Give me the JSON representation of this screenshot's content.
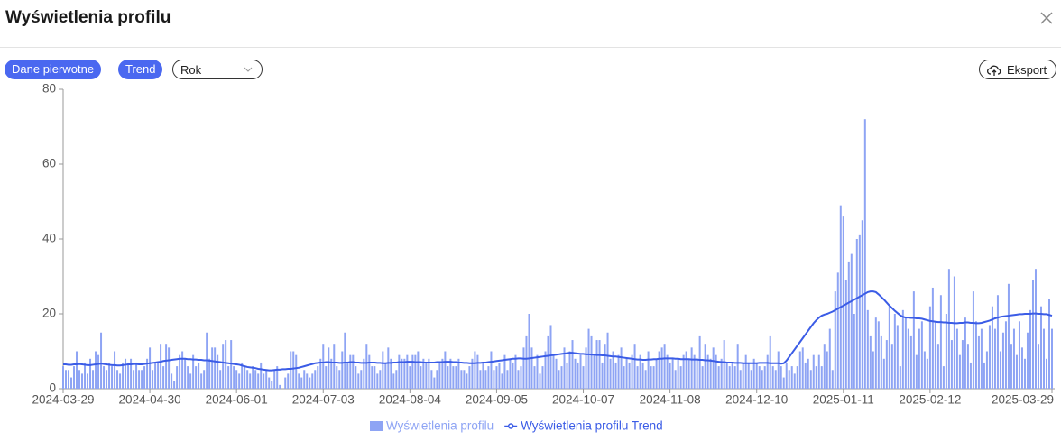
{
  "header": {
    "title": "Wyświetlenia profilu"
  },
  "controls": {
    "raw_data": "Dane pierwotne",
    "trend": "Trend",
    "period": "Rok",
    "export": "Eksport"
  },
  "chart_data": {
    "type": "bar",
    "ylim": [
      0,
      80
    ],
    "yticks": [
      0,
      20,
      40,
      60,
      80
    ],
    "categories": [
      "2024-03-29",
      null,
      null,
      null,
      null,
      null,
      null,
      null,
      null,
      null,
      null,
      null,
      null,
      null,
      null,
      null,
      null,
      null,
      null,
      null,
      null,
      null,
      null,
      null,
      null,
      null,
      null,
      null,
      null,
      null,
      null,
      null,
      "2024-04-30",
      null,
      null,
      null,
      null,
      null,
      null,
      null,
      null,
      null,
      null,
      null,
      null,
      null,
      null,
      null,
      null,
      null,
      null,
      null,
      null,
      null,
      null,
      null,
      null,
      null,
      null,
      null,
      null,
      null,
      null,
      null,
      "2024-06-01",
      null,
      null,
      null,
      null,
      null,
      null,
      null,
      null,
      null,
      null,
      null,
      null,
      null,
      null,
      null,
      null,
      null,
      null,
      null,
      null,
      null,
      null,
      null,
      null,
      null,
      null,
      null,
      null,
      null,
      null,
      null,
      "2024-07-03",
      null,
      null,
      null,
      null,
      null,
      null,
      null,
      null,
      null,
      null,
      null,
      null,
      null,
      null,
      null,
      null,
      null,
      null,
      null,
      null,
      null,
      null,
      null,
      null,
      null,
      null,
      null,
      null,
      null,
      null,
      null,
      "2024-08-04",
      null,
      null,
      null,
      null,
      null,
      null,
      null,
      null,
      null,
      null,
      null,
      null,
      null,
      null,
      null,
      null,
      null,
      null,
      null,
      null,
      null,
      null,
      null,
      null,
      null,
      null,
      null,
      null,
      null,
      null,
      null,
      "2024-09-05",
      null,
      null,
      null,
      null,
      null,
      null,
      null,
      null,
      null,
      null,
      null,
      null,
      null,
      null,
      null,
      null,
      null,
      null,
      null,
      null,
      null,
      null,
      null,
      null,
      null,
      null,
      null,
      null,
      null,
      null,
      null,
      "2024-10-07",
      null,
      null,
      null,
      null,
      null,
      null,
      null,
      null,
      null,
      null,
      null,
      null,
      null,
      null,
      null,
      null,
      null,
      null,
      null,
      null,
      null,
      null,
      null,
      null,
      null,
      null,
      null,
      null,
      null,
      null,
      null,
      "2024-11-08",
      null,
      null,
      null,
      null,
      null,
      null,
      null,
      null,
      null,
      null,
      null,
      null,
      null,
      null,
      null,
      null,
      null,
      null,
      null,
      null,
      null,
      null,
      null,
      null,
      null,
      null,
      null,
      null,
      null,
      null,
      null,
      "2024-12-10",
      null,
      null,
      null,
      null,
      null,
      null,
      null,
      null,
      null,
      null,
      null,
      null,
      null,
      null,
      null,
      null,
      null,
      null,
      null,
      null,
      null,
      null,
      null,
      null,
      null,
      null,
      null,
      null,
      null,
      null,
      null,
      "2025-01-11",
      null,
      null,
      null,
      null,
      null,
      null,
      null,
      null,
      null,
      null,
      null,
      null,
      null,
      null,
      null,
      null,
      null,
      null,
      null,
      null,
      null,
      null,
      null,
      null,
      null,
      null,
      null,
      null,
      null,
      null,
      null,
      "2025-02-12",
      null,
      null,
      null,
      null,
      null,
      null,
      null,
      null,
      null,
      null,
      null,
      null,
      null,
      null,
      null,
      null,
      null,
      null,
      null,
      null,
      null,
      null,
      null,
      null,
      null,
      null,
      null,
      null,
      null,
      null,
      null,
      null,
      null,
      null,
      null,
      null,
      null,
      null,
      null,
      null,
      null,
      null,
      null,
      null,
      "2025-03-29"
    ],
    "series": [
      {
        "name": "Wyświetlenia profilu",
        "type": "bar",
        "color": "#8ea4f4",
        "values": [
          6,
          5,
          5,
          3,
          6,
          10,
          5,
          4,
          7,
          4,
          8,
          5,
          10,
          9,
          15,
          6,
          5,
          7,
          6,
          10,
          5,
          4,
          7,
          8,
          7,
          8,
          5,
          7,
          5,
          5,
          6,
          8,
          11,
          5,
          7,
          7,
          12,
          6,
          12,
          11,
          4,
          2,
          6,
          9,
          10,
          8,
          6,
          4,
          9,
          6,
          7,
          4,
          5,
          15,
          8,
          11,
          11,
          9,
          5,
          12,
          13,
          6,
          13,
          6,
          5,
          4,
          7,
          6,
          5,
          4,
          6,
          5,
          4,
          7,
          4,
          5,
          3,
          2,
          5,
          6,
          1,
          0,
          3,
          4,
          10,
          10,
          9,
          4,
          3,
          5,
          4,
          3,
          4,
          5,
          6,
          8,
          12,
          6,
          11,
          8,
          12,
          6,
          5,
          10,
          15,
          7,
          9,
          9,
          6,
          4,
          5,
          8,
          12,
          9,
          6,
          6,
          4,
          5,
          10,
          7,
          11,
          8,
          4,
          5,
          9,
          8,
          8,
          9,
          6,
          9,
          9,
          10,
          6,
          8,
          7,
          8,
          5,
          3,
          5,
          7,
          8,
          10,
          6,
          8,
          6,
          6,
          8,
          5,
          5,
          4,
          6,
          8,
          10,
          9,
          5,
          7,
          5,
          6,
          10,
          5,
          6,
          7,
          4,
          9,
          5,
          8,
          7,
          9,
          5,
          6,
          11,
          14,
          20,
          11,
          6,
          9,
          4,
          6,
          10,
          14,
          17,
          9,
          8,
          5,
          6,
          11,
          7,
          10,
          13,
          8,
          7,
          9,
          6,
          11,
          16,
          14,
          9,
          13,
          13,
          7,
          12,
          15,
          8,
          10,
          7,
          9,
          11,
          6,
          8,
          7,
          9,
          12,
          6,
          9,
          7,
          5,
          10,
          6,
          6,
          8,
          10,
          11,
          12,
          9,
          7,
          8,
          5,
          8,
          6,
          9,
          10,
          8,
          11,
          9,
          8,
          14,
          6,
          12,
          9,
          8,
          11,
          9,
          6,
          8,
          13,
          7,
          6,
          7,
          6,
          12,
          5,
          7,
          9,
          7,
          5,
          8,
          7,
          6,
          5,
          6,
          9,
          14,
          6,
          5,
          10,
          6,
          3,
          7,
          5,
          6,
          4,
          6,
          10,
          11,
          7,
          8,
          5,
          9,
          6,
          9,
          6,
          12,
          10,
          16,
          5,
          26,
          31,
          49,
          46,
          29,
          34,
          36,
          20,
          40,
          41,
          45,
          72,
          21,
          14,
          10,
          19,
          18,
          14,
          8,
          13,
          22,
          12,
          20,
          17,
          6,
          21,
          19,
          16,
          14,
          26,
          9,
          16,
          18,
          10,
          8,
          22,
          27,
          18,
          12,
          25,
          6,
          20,
          32,
          13,
          30,
          16,
          9,
          13,
          19,
          12,
          7,
          26,
          18,
          14,
          16,
          7,
          10,
          17,
          22,
          16,
          25,
          10,
          15,
          18,
          28,
          12,
          16,
          9,
          18,
          11,
          8,
          15,
          21,
          29,
          32,
          12,
          22,
          16,
          8,
          24,
          16
        ]
      },
      {
        "name": "Wyświetlenia profilu Trend",
        "type": "line",
        "color": "#3b5ce6",
        "values": [
          6.5,
          6.5,
          6.4,
          6.4,
          6.5,
          6.5,
          6.6,
          6.5,
          6.4,
          6.3,
          6.3,
          6.4,
          6.5,
          6.6,
          6.7,
          6.6,
          6.5,
          6.4,
          6.3,
          6.3,
          6.2,
          6.2,
          6.3,
          6.4,
          6.5,
          6.5,
          6.6,
          6.6,
          6.5,
          6.5,
          6.6,
          6.7,
          6.8,
          6.9,
          7.0,
          7.1,
          7.2,
          7.4,
          7.5,
          7.6,
          7.7,
          7.8,
          7.9,
          8.0,
          8.0,
          8.0,
          7.9,
          7.9,
          7.8,
          7.8,
          7.7,
          7.7,
          7.6,
          7.6,
          7.5,
          7.4,
          7.3,
          7.2,
          7.1,
          7.0,
          6.9,
          6.8,
          6.7,
          6.6,
          6.5,
          6.4,
          6.2,
          6.0,
          5.8,
          5.7,
          5.6,
          5.5,
          5.3,
          5.2,
          5.1,
          5.0,
          4.9,
          4.9,
          5.0,
          5.1,
          5.1,
          5.2,
          5.2,
          5.3,
          5.3,
          5.4,
          5.5,
          5.6,
          5.8,
          6.0,
          6.2,
          6.4,
          6.6,
          6.8,
          6.9,
          7.0,
          7.0,
          7.1,
          7.1,
          7.0,
          7.0,
          7.0,
          6.9,
          6.9,
          7.0,
          7.0,
          7.1,
          7.1,
          7.0,
          7.0,
          6.9,
          6.9,
          6.9,
          7.0,
          7.0,
          7.0,
          6.9,
          6.9,
          6.8,
          6.8,
          6.9,
          6.9,
          7.0,
          7.0,
          7.1,
          7.1,
          7.1,
          7.2,
          7.2,
          7.2,
          7.1,
          7.1,
          7.1,
          7.0,
          7.0,
          7.0,
          7.0,
          7.0,
          7.1,
          7.1,
          7.1,
          7.2,
          7.2,
          7.2,
          7.1,
          7.1,
          7.0,
          7.0,
          6.9,
          6.9,
          6.8,
          6.8,
          6.8,
          6.9,
          6.9,
          7.0,
          7.0,
          7.1,
          7.2,
          7.3,
          7.4,
          7.5,
          7.6,
          7.7,
          7.8,
          7.9,
          8.0,
          8.0,
          8.1,
          8.1,
          8.0,
          8.0,
          8.1,
          8.2,
          8.3,
          8.4,
          8.5,
          8.6,
          8.7,
          8.8,
          8.9,
          9.0,
          9.1,
          9.2,
          9.3,
          9.4,
          9.5,
          9.6,
          9.6,
          9.5,
          9.4,
          9.3,
          9.3,
          9.2,
          9.2,
          9.1,
          9.1,
          9.0,
          9.0,
          8.9,
          8.9,
          8.8,
          8.7,
          8.6,
          8.6,
          8.5,
          8.4,
          8.3,
          8.2,
          8.1,
          8.0,
          7.9,
          7.8,
          7.8,
          7.7,
          7.7,
          7.8,
          7.8,
          7.9,
          7.9,
          8.0,
          8.0,
          8.1,
          8.1,
          8.1,
          8.1,
          8.0,
          8.0,
          7.9,
          7.9,
          7.9,
          7.9,
          7.8,
          7.8,
          7.8,
          7.7,
          7.7,
          7.6,
          7.6,
          7.5,
          7.4,
          7.3,
          7.2,
          7.1,
          7.1,
          7.0,
          7.0,
          7.0,
          6.9,
          6.9,
          6.9,
          6.8,
          6.8,
          6.8,
          6.8,
          6.8,
          6.8,
          6.9,
          6.9,
          6.9,
          6.9,
          6.8,
          6.8,
          6.8,
          6.8,
          6.7,
          6.8,
          7.5,
          8.5,
          9.5,
          10.5,
          11.5,
          12.5,
          13.5,
          14.5,
          15.5,
          16.5,
          17.5,
          18.3,
          19.0,
          19.5,
          19.8,
          20.0,
          20.3,
          20.6,
          21.0,
          21.4,
          21.8,
          22.2,
          22.6,
          23.0,
          23.4,
          23.8,
          24.2,
          24.6,
          25.0,
          25.4,
          25.8,
          26.0,
          26.0,
          25.8,
          25.2,
          24.5,
          23.8,
          23.0,
          22.2,
          21.5,
          20.8,
          20.2,
          19.6,
          19.2,
          19.0,
          19.0,
          18.9,
          18.9,
          18.8,
          18.8,
          18.7,
          18.5,
          18.3,
          18.1,
          18.0,
          17.9,
          17.8,
          17.8,
          17.7,
          17.7,
          17.6,
          17.6,
          17.5,
          17.5,
          17.6,
          17.6,
          17.7,
          17.7,
          17.6,
          17.6,
          17.5,
          17.5,
          17.6,
          17.8,
          18.0,
          18.2,
          18.5,
          18.8,
          19.0,
          19.2,
          19.3,
          19.4,
          19.5,
          19.6,
          19.7,
          19.8,
          19.9,
          19.9,
          20.0,
          20.0,
          20.0,
          20.1,
          20.1,
          20.0,
          20.0,
          19.9,
          19.9,
          19.7,
          19.5
        ]
      }
    ]
  }
}
